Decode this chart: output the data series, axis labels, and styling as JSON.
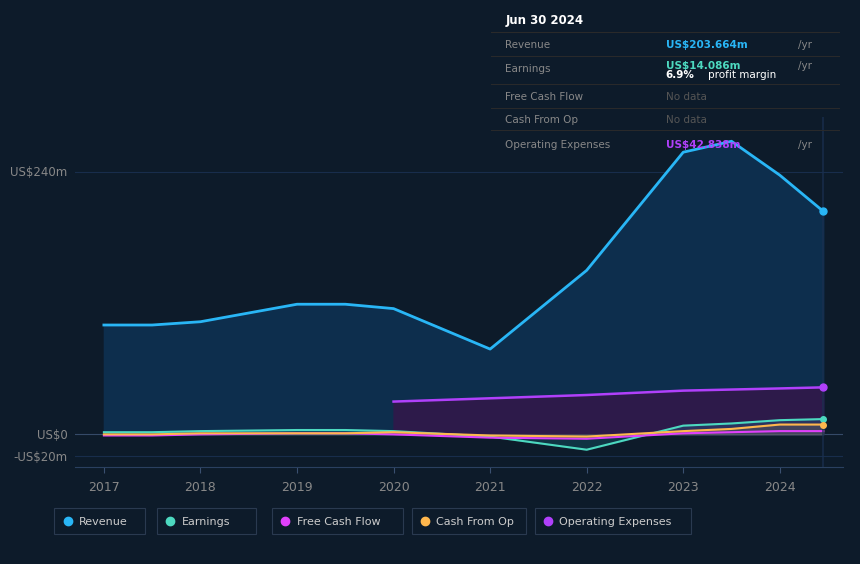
{
  "background_color": "#0d1b2a",
  "chart_bg_color": "#0e1f33",
  "years": [
    2017,
    2017.5,
    2018,
    2019,
    2019.5,
    2020,
    2021,
    2022,
    2023,
    2023.5,
    2024,
    2024.45
  ],
  "revenue": [
    100,
    100,
    103,
    119,
    119,
    115,
    78,
    150,
    258,
    268,
    237,
    204
  ],
  "earnings": [
    2,
    2,
    3,
    4,
    4,
    3,
    -2,
    -14,
    8,
    10,
    13,
    14
  ],
  "free_cash_flow": [
    -1,
    -1,
    0,
    1,
    1,
    0,
    -3,
    -4,
    1,
    2,
    3,
    3
  ],
  "cash_from_op": [
    0,
    0,
    1,
    1,
    1,
    2,
    -1,
    -2,
    3,
    5,
    9,
    9
  ],
  "operating_expenses": [
    0,
    0,
    0,
    0,
    0,
    30,
    33,
    36,
    40,
    41,
    42,
    43
  ],
  "revenue_color": "#29b6f6",
  "earnings_color": "#4dd9c0",
  "free_cash_flow_color": "#e040fb",
  "cash_from_op_color": "#ffb74d",
  "operating_expenses_color": "#b040fb",
  "op_expenses_fill_color": "#2d1a4a",
  "revenue_fill_color": "#0d2e4d",
  "ylim_min": -30,
  "ylim_max": 290,
  "ytick_positions": [
    -20,
    0,
    240
  ],
  "ytick_labels": [
    "-US$20m",
    "US$0",
    "US$240m"
  ],
  "xticks": [
    2017,
    2018,
    2019,
    2020,
    2021,
    2022,
    2023,
    2024
  ],
  "grid_color": "#1a3050",
  "text_color": "#888888",
  "white_color": "#ffffff",
  "tooltip_bg": "#060a0f",
  "tooltip_border": "#2a2a2a",
  "tooltip_date": "Jun 30 2024",
  "tooltip_revenue_label": "Revenue",
  "tooltip_revenue_value": "US$203.664m",
  "tooltip_earnings_label": "Earnings",
  "tooltip_earnings_value": "US$14.086m",
  "tooltip_margin_pct": "6.9%",
  "tooltip_margin_text": "profit margin",
  "tooltip_fcf_label": "Free Cash Flow",
  "tooltip_fcf_value": "No data",
  "tooltip_cashop_label": "Cash From Op",
  "tooltip_cashop_value": "No data",
  "tooltip_opex_label": "Operating Expenses",
  "tooltip_opex_value": "US$42.838m",
  "legend_items": [
    "Revenue",
    "Earnings",
    "Free Cash Flow",
    "Cash From Op",
    "Operating Expenses"
  ],
  "legend_colors": [
    "#29b6f6",
    "#4dd9c0",
    "#e040fb",
    "#ffb74d",
    "#b040fb"
  ],
  "vline_color": "#1a3050",
  "vline_x": 2024.45
}
